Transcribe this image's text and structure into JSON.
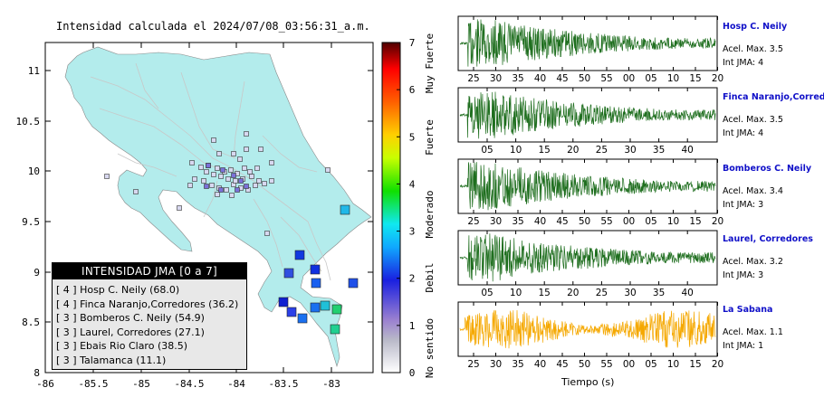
{
  "map": {
    "title": "Intensidad calculada el 2024/07/08_03:56:31_a.m.",
    "lon_ticks": [
      "-86",
      "-85.5",
      "-85",
      "-84.5",
      "-84",
      "-83.5",
      "-83"
    ],
    "lat_ticks": [
      "8",
      "8.5",
      "9",
      "9.5",
      "10",
      "10.5",
      "11"
    ]
  },
  "colorbar": {
    "ticks": [
      "0",
      "1",
      "2",
      "3",
      "4",
      "5",
      "6",
      "7"
    ],
    "categories": [
      "No sentido",
      "Debil",
      "Moderado",
      "Fuerte",
      "Muy Fuerte"
    ]
  },
  "legend": {
    "title": "INTENSIDAD JMA [0 a 7]",
    "rows": [
      "[ 4 ]  Hosp C. Neily (68.0)",
      "[ 4 ]  Finca Naranjo,Corredores (36.2)",
      "[ 3 ]  Bomberos C. Neily (54.9)",
      "[ 3 ]  Laurel, Corredores (27.1)",
      "[ 3 ]  Ebais Rio Claro (38.5)",
      "[ 3 ]  Talamanca (11.1)"
    ]
  },
  "stations": [
    {
      "name": "Hosp C. Neily",
      "acel": "Acel. Max. 3.5",
      "jma": "Int JMA: 4",
      "ticks": [
        "25",
        "30",
        "35",
        "40",
        "45",
        "50",
        "55",
        "00",
        "05",
        "10",
        "15",
        "20"
      ],
      "color": "#1e6e1e"
    },
    {
      "name": "Finca Naranjo,Corredores",
      "acel": "Acel. Max. 3.5",
      "jma": "Int JMA: 4",
      "ticks": [
        "05",
        "10",
        "15",
        "20",
        "25",
        "30",
        "35",
        "40"
      ],
      "color": "#1e6e1e"
    },
    {
      "name": "Bomberos C. Neily",
      "acel": "Acel. Max. 3.4",
      "jma": "Int JMA: 3",
      "ticks": [
        "25",
        "30",
        "35",
        "40",
        "45",
        "50",
        "55",
        "00",
        "05",
        "10",
        "15",
        "20"
      ],
      "color": "#1e6e1e"
    },
    {
      "name": "Laurel, Corredores",
      "acel": "Acel. Max. 3.2",
      "jma": "Int JMA: 3",
      "ticks": [
        "05",
        "10",
        "15",
        "20",
        "25",
        "30",
        "35",
        "40"
      ],
      "color": "#1e6e1e"
    },
    {
      "name": "La Sabana",
      "acel": "Acel. Max. 1.1",
      "jma": "Int JMA: 1",
      "ticks": [
        "25",
        "30",
        "35",
        "40",
        "45",
        "50",
        "55",
        "00",
        "05",
        "10",
        "15",
        "20"
      ],
      "color": "#f5a800"
    }
  ],
  "time_axis_label": "Tiempo (s)",
  "colors": {
    "land": "#b3ecec",
    "ocean": "#ffffff"
  }
}
